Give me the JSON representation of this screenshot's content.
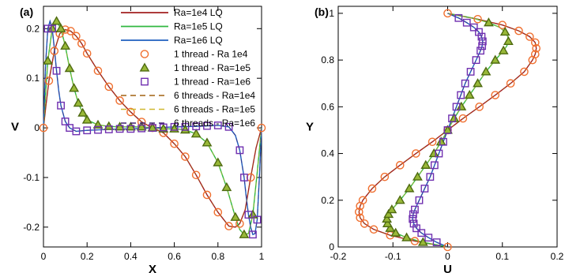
{
  "chart_data": [
    {
      "panel_label": "(a)",
      "type": "line",
      "xlabel": "X",
      "ylabel": "V",
      "xlim": [
        0,
        1
      ],
      "ylim": [
        -0.24,
        0.245
      ],
      "xticks": [
        0,
        0.2,
        0.4,
        0.6,
        0.8,
        1
      ],
      "xtick_labels": [
        "0",
        "0.2",
        "0.4",
        "0.6",
        "0.8",
        "1"
      ],
      "yticks": [
        -0.2,
        -0.1,
        0,
        0.1,
        0.2
      ],
      "ytick_labels": [
        "-0.2",
        "-0.1",
        "0",
        "0.1",
        "0.2"
      ],
      "legend_position": "top-right",
      "series": [
        {
          "key": "ra1e4",
          "x": [
            0,
            0.01,
            0.025,
            0.05,
            0.075,
            0.1,
            0.125,
            0.15,
            0.175,
            0.2,
            0.25,
            0.3,
            0.35,
            0.4,
            0.45,
            0.5,
            0.55,
            0.6,
            0.65,
            0.7,
            0.75,
            0.8,
            0.85,
            0.88,
            0.9,
            0.925,
            0.95,
            0.975,
            1.0
          ],
          "y": [
            0,
            0.04,
            0.095,
            0.155,
            0.19,
            0.198,
            0.195,
            0.185,
            0.17,
            0.15,
            0.115,
            0.083,
            0.055,
            0.032,
            0.012,
            0,
            -0.01,
            -0.032,
            -0.058,
            -0.095,
            -0.135,
            -0.17,
            -0.198,
            -0.2,
            -0.193,
            -0.165,
            -0.1,
            -0.04,
            0
          ]
        },
        {
          "key": "ra1e5",
          "x": [
            0,
            0.01,
            0.02,
            0.04,
            0.06,
            0.08,
            0.1,
            0.12,
            0.14,
            0.16,
            0.18,
            0.2,
            0.25,
            0.3,
            0.35,
            0.4,
            0.45,
            0.5,
            0.55,
            0.6,
            0.65,
            0.7,
            0.75,
            0.8,
            0.84,
            0.88,
            0.9,
            0.92,
            0.94,
            0.96,
            0.98,
            1.0
          ],
          "y": [
            0,
            0.07,
            0.135,
            0.2,
            0.215,
            0.2,
            0.165,
            0.12,
            0.08,
            0.05,
            0.03,
            0.016,
            0.006,
            0.003,
            0.002,
            0.002,
            0.002,
            0,
            -0.002,
            -0.002,
            -0.004,
            -0.012,
            -0.03,
            -0.07,
            -0.12,
            -0.18,
            -0.205,
            -0.215,
            -0.213,
            -0.175,
            -0.09,
            0
          ]
        },
        {
          "key": "ra1e6",
          "x": [
            0,
            0.005,
            0.01,
            0.02,
            0.03,
            0.04,
            0.05,
            0.06,
            0.07,
            0.08,
            0.1,
            0.12,
            0.15,
            0.2,
            0.3,
            0.4,
            0.5,
            0.6,
            0.7,
            0.8,
            0.85,
            0.88,
            0.9,
            0.92,
            0.93,
            0.94,
            0.95,
            0.96,
            0.97,
            0.98,
            0.99,
            1.0
          ],
          "y": [
            0,
            0.07,
            0.13,
            0.2,
            0.215,
            0.2,
            0.16,
            0.115,
            0.075,
            0.045,
            0.013,
            0,
            -0.007,
            -0.005,
            -0.003,
            -0.002,
            0,
            0.002,
            0.003,
            0.005,
            0.002,
            -0.015,
            -0.045,
            -0.1,
            -0.14,
            -0.175,
            -0.2,
            -0.215,
            -0.213,
            -0.185,
            -0.1,
            0
          ]
        }
      ],
      "markers": [
        {
          "key": "ra1e4",
          "x": [
            0,
            0.025,
            0.05,
            0.075,
            0.1,
            0.125,
            0.15,
            0.175,
            0.2,
            0.25,
            0.3,
            0.35,
            0.4,
            0.45,
            0.5,
            0.55,
            0.6,
            0.65,
            0.7,
            0.75,
            0.8,
            0.85,
            0.9,
            0.95,
            1.0
          ],
          "y": [
            0,
            0.095,
            0.155,
            0.19,
            0.198,
            0.195,
            0.185,
            0.17,
            0.15,
            0.115,
            0.083,
            0.055,
            0.032,
            0.012,
            0,
            -0.01,
            -0.032,
            -0.058,
            -0.095,
            -0.135,
            -0.17,
            -0.198,
            -0.193,
            -0.1,
            0
          ]
        },
        {
          "key": "ra1e5",
          "x": [
            0.02,
            0.04,
            0.06,
            0.08,
            0.1,
            0.12,
            0.14,
            0.16,
            0.18,
            0.2,
            0.25,
            0.3,
            0.35,
            0.4,
            0.45,
            0.5,
            0.55,
            0.6,
            0.65,
            0.7,
            0.75,
            0.8,
            0.84,
            0.88,
            0.92,
            0.96
          ],
          "y": [
            0.135,
            0.2,
            0.215,
            0.2,
            0.165,
            0.12,
            0.08,
            0.05,
            0.03,
            0.016,
            0.006,
            0.003,
            0.002,
            0.002,
            0.002,
            0,
            -0.002,
            -0.002,
            -0.004,
            -0.012,
            -0.03,
            -0.07,
            -0.12,
            -0.18,
            -0.215,
            -0.175
          ]
        },
        {
          "key": "ra1e6",
          "x": [
            0.02,
            0.04,
            0.06,
            0.08,
            0.1,
            0.12,
            0.15,
            0.2,
            0.25,
            0.3,
            0.35,
            0.4,
            0.45,
            0.5,
            0.55,
            0.6,
            0.65,
            0.7,
            0.75,
            0.8,
            0.85,
            0.9,
            0.92,
            0.94,
            0.96,
            0.98
          ],
          "y": [
            0.2,
            0.2,
            0.115,
            0.045,
            0.013,
            0,
            -0.007,
            -0.005,
            -0.004,
            -0.003,
            -0.002,
            -0.002,
            -0.001,
            0,
            0.001,
            0.002,
            0.002,
            0.003,
            0.004,
            0.005,
            0.002,
            -0.045,
            -0.1,
            -0.175,
            -0.215,
            -0.185
          ]
        }
      ]
    },
    {
      "panel_label": "(b)",
      "type": "line",
      "xlabel": "U",
      "ylabel": "Y",
      "xlim": [
        -0.2,
        0.2
      ],
      "ylim": [
        0,
        1.03
      ],
      "xticks": [
        -0.2,
        -0.1,
        0,
        0.1,
        0.2
      ],
      "xtick_labels": [
        "-0.2",
        "-0.1",
        "0",
        "0.1",
        "0.2"
      ],
      "yticks": [
        0,
        0.2,
        0.4,
        0.6,
        0.8,
        1
      ],
      "ytick_labels": [
        "0",
        "0.2",
        "0.4",
        "0.6",
        "0.8",
        "1"
      ],
      "series": [
        {
          "key": "ra1e4",
          "y": [
            0,
            0.025,
            0.05,
            0.075,
            0.1,
            0.125,
            0.15,
            0.175,
            0.2,
            0.25,
            0.3,
            0.35,
            0.4,
            0.45,
            0.5,
            0.55,
            0.6,
            0.65,
            0.7,
            0.75,
            0.8,
            0.825,
            0.85,
            0.875,
            0.9,
            0.925,
            0.95,
            0.975,
            1.0
          ],
          "x": [
            0,
            -0.06,
            -0.105,
            -0.135,
            -0.152,
            -0.16,
            -0.162,
            -0.16,
            -0.155,
            -0.138,
            -0.115,
            -0.087,
            -0.058,
            -0.028,
            0,
            0.028,
            0.058,
            0.087,
            0.115,
            0.14,
            0.155,
            0.16,
            0.162,
            0.16,
            0.15,
            0.13,
            0.1,
            0.055,
            0
          ]
        },
        {
          "key": "ra1e5",
          "y": [
            0,
            0.02,
            0.04,
            0.06,
            0.08,
            0.1,
            0.12,
            0.14,
            0.16,
            0.2,
            0.25,
            0.3,
            0.35,
            0.4,
            0.45,
            0.5,
            0.55,
            0.6,
            0.65,
            0.7,
            0.75,
            0.8,
            0.84,
            0.86,
            0.88,
            0.9,
            0.92,
            0.94,
            0.96,
            0.98,
            1.0
          ],
          "x": [
            0,
            -0.045,
            -0.075,
            -0.095,
            -0.105,
            -0.11,
            -0.111,
            -0.108,
            -0.102,
            -0.087,
            -0.07,
            -0.055,
            -0.04,
            -0.025,
            -0.012,
            0,
            0.012,
            0.025,
            0.04,
            0.055,
            0.07,
            0.087,
            0.102,
            0.108,
            0.111,
            0.11,
            0.105,
            0.095,
            0.075,
            0.045,
            0
          ]
        },
        {
          "key": "ra1e6",
          "y": [
            0,
            0.02,
            0.04,
            0.06,
            0.08,
            0.1,
            0.12,
            0.14,
            0.16,
            0.2,
            0.25,
            0.3,
            0.35,
            0.4,
            0.45,
            0.5,
            0.55,
            0.6,
            0.65,
            0.7,
            0.75,
            0.8,
            0.84,
            0.86,
            0.88,
            0.9,
            0.92,
            0.94,
            0.96,
            0.98,
            1.0
          ],
          "x": [
            0,
            -0.02,
            -0.035,
            -0.048,
            -0.057,
            -0.062,
            -0.064,
            -0.063,
            -0.06,
            -0.052,
            -0.042,
            -0.032,
            -0.024,
            -0.016,
            -0.008,
            0,
            0.008,
            0.016,
            0.024,
            0.032,
            0.042,
            0.052,
            0.06,
            0.063,
            0.064,
            0.062,
            0.057,
            0.048,
            0.035,
            0.02,
            0
          ]
        }
      ],
      "markers": [
        {
          "key": "ra1e4",
          "y": [
            0,
            0.025,
            0.05,
            0.075,
            0.1,
            0.125,
            0.15,
            0.175,
            0.2,
            0.25,
            0.3,
            0.35,
            0.4,
            0.45,
            0.5,
            0.55,
            0.6,
            0.65,
            0.7,
            0.75,
            0.8,
            0.825,
            0.85,
            0.875,
            0.9,
            0.925,
            0.95,
            0.975,
            1.0
          ],
          "x": [
            0,
            -0.06,
            -0.105,
            -0.135,
            -0.152,
            -0.16,
            -0.162,
            -0.16,
            -0.155,
            -0.138,
            -0.115,
            -0.087,
            -0.058,
            -0.028,
            0,
            0.028,
            0.058,
            0.087,
            0.115,
            0.14,
            0.155,
            0.16,
            0.162,
            0.16,
            0.15,
            0.13,
            0.1,
            0.055,
            0
          ]
        },
        {
          "key": "ra1e5",
          "y": [
            0.02,
            0.04,
            0.06,
            0.08,
            0.1,
            0.12,
            0.14,
            0.16,
            0.2,
            0.25,
            0.3,
            0.35,
            0.4,
            0.45,
            0.5,
            0.55,
            0.6,
            0.65,
            0.7,
            0.75,
            0.8,
            0.84,
            0.88,
            0.92,
            0.96
          ],
          "x": [
            -0.045,
            -0.075,
            -0.095,
            -0.105,
            -0.11,
            -0.111,
            -0.108,
            -0.102,
            -0.087,
            -0.07,
            -0.055,
            -0.04,
            -0.025,
            -0.012,
            0,
            0.012,
            0.025,
            0.04,
            0.055,
            0.07,
            0.087,
            0.102,
            0.111,
            0.105,
            0.075
          ]
        },
        {
          "key": "ra1e6",
          "y": [
            0.02,
            0.04,
            0.06,
            0.08,
            0.1,
            0.12,
            0.14,
            0.16,
            0.2,
            0.25,
            0.3,
            0.35,
            0.4,
            0.45,
            0.5,
            0.55,
            0.6,
            0.65,
            0.7,
            0.75,
            0.8,
            0.84,
            0.86,
            0.88,
            0.9,
            0.92,
            0.94,
            0.96,
            0.98
          ],
          "x": [
            -0.02,
            -0.035,
            -0.048,
            -0.057,
            -0.062,
            -0.064,
            -0.063,
            -0.06,
            -0.052,
            -0.042,
            -0.032,
            -0.024,
            -0.016,
            -0.008,
            0,
            0.008,
            0.016,
            0.024,
            0.032,
            0.042,
            0.052,
            0.06,
            0.063,
            0.064,
            0.062,
            0.057,
            0.048,
            0.035,
            0.02
          ]
        }
      ]
    }
  ],
  "legend": [
    {
      "label": "Ra=1e4 LQ",
      "kind": "line",
      "key": "ra1e4"
    },
    {
      "label": "Ra=1e5 LQ",
      "kind": "line",
      "key": "ra1e5"
    },
    {
      "label": "Ra=1e6 LQ",
      "kind": "line",
      "key": "ra1e6"
    },
    {
      "label": "1 thread - Ra 1e4",
      "kind": "marker",
      "key": "ra1e4"
    },
    {
      "label": "1 thread - Ra=1e5",
      "kind": "marker",
      "key": "ra1e5"
    },
    {
      "label": "1 thread - Ra=1e6",
      "kind": "marker",
      "key": "ra1e6"
    },
    {
      "label": "6 threads - Ra=1e4",
      "kind": "dashed",
      "key": "ra1e4"
    },
    {
      "label": "6 threads - Ra=1e5",
      "kind": "dashed",
      "key": "ra1e5"
    },
    {
      "label": "6 threads - Ra=1e6",
      "kind": "dashed",
      "key": "ra1e6"
    }
  ],
  "styles": {
    "ra1e4": {
      "line_color": "#a32020",
      "marker": "circle",
      "marker_stroke": "#f07030",
      "marker_fill": "none",
      "dash_color": "#a06010"
    },
    "ra1e5": {
      "line_color": "#30b840",
      "marker": "triangle",
      "marker_stroke": "#4e6a10",
      "marker_fill": "#98b838",
      "dash_color": "#d0b830"
    },
    "ra1e6": {
      "line_color": "#1f5fbf",
      "marker": "square",
      "marker_stroke": "#7030b0",
      "marker_fill": "none",
      "dash_color": "#402070"
    }
  }
}
